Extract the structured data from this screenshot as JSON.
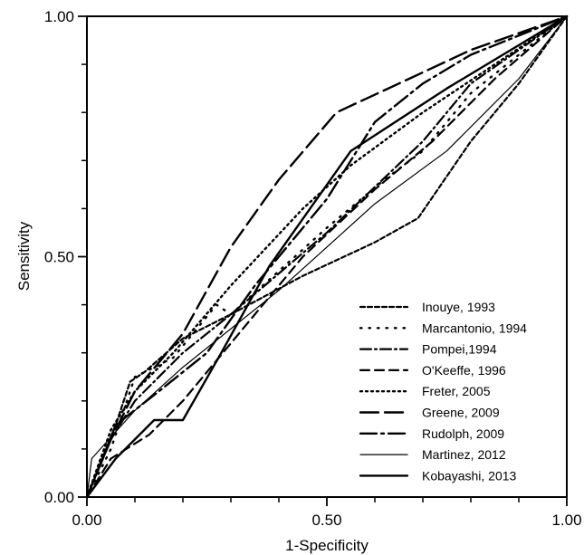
{
  "chart_data": {
    "type": "line",
    "title": "",
    "xlabel": "1-Specificity",
    "ylabel": "Sensitivity",
    "xlim": [
      0,
      1
    ],
    "ylim": [
      0,
      1
    ],
    "x_ticks": [
      "0.00",
      "0.50",
      "1.00"
    ],
    "y_ticks": [
      "0.00",
      "0.50",
      "1.00"
    ],
    "grid": false,
    "legend_position": "bottom-right",
    "series": [
      {
        "name": "Inouye, 1993",
        "style": "short-dash",
        "width": 2.2,
        "points": [
          [
            0,
            0
          ],
          [
            0.02,
            0.05
          ],
          [
            0.06,
            0.15
          ],
          [
            0.09,
            0.24
          ],
          [
            0.12,
            0.26
          ],
          [
            0.2,
            0.33
          ],
          [
            0.3,
            0.38
          ],
          [
            0.45,
            0.46
          ],
          [
            0.6,
            0.53
          ],
          [
            0.69,
            0.58
          ],
          [
            0.8,
            0.74
          ],
          [
            0.9,
            0.86
          ],
          [
            1,
            1
          ]
        ]
      },
      {
        "name": "Marcantonio, 1994",
        "style": "sparse-dot",
        "width": 2.4,
        "points": [
          [
            0,
            0
          ],
          [
            0.05,
            0.1
          ],
          [
            0.1,
            0.25
          ],
          [
            0.18,
            0.29
          ],
          [
            0.27,
            0.4
          ],
          [
            0.3,
            0.38
          ],
          [
            0.5,
            0.56
          ],
          [
            0.62,
            0.66
          ],
          [
            0.7,
            0.72
          ],
          [
            0.8,
            0.84
          ],
          [
            1,
            1
          ]
        ]
      },
      {
        "name": "Pompei,1994",
        "style": "dash-dot",
        "width": 2.2,
        "points": [
          [
            0,
            0
          ],
          [
            0.05,
            0.12
          ],
          [
            0.1,
            0.2
          ],
          [
            0.2,
            0.3
          ],
          [
            0.3,
            0.38
          ],
          [
            0.5,
            0.55
          ],
          [
            0.7,
            0.74
          ],
          [
            0.8,
            0.86
          ],
          [
            1,
            1
          ]
        ]
      },
      {
        "name": "O'Keeffe, 1996",
        "style": "dash",
        "width": 2.2,
        "points": [
          [
            0,
            0
          ],
          [
            0.05,
            0.08
          ],
          [
            0.13,
            0.13
          ],
          [
            0.2,
            0.2
          ],
          [
            0.3,
            0.32
          ],
          [
            0.45,
            0.5
          ],
          [
            0.6,
            0.64
          ],
          [
            0.72,
            0.74
          ],
          [
            0.85,
            0.87
          ],
          [
            1,
            1
          ]
        ]
      },
      {
        "name": "Freter, 2005",
        "style": "dot",
        "width": 2.4,
        "points": [
          [
            0,
            0
          ],
          [
            0.05,
            0.14
          ],
          [
            0.1,
            0.22
          ],
          [
            0.18,
            0.3
          ],
          [
            0.3,
            0.44
          ],
          [
            0.45,
            0.6
          ],
          [
            0.55,
            0.69
          ],
          [
            0.7,
            0.8
          ],
          [
            0.85,
            0.9
          ],
          [
            1,
            1
          ]
        ]
      },
      {
        "name": "Greene, 2009",
        "style": "long-dash",
        "width": 2.4,
        "points": [
          [
            0,
            0
          ],
          [
            0.05,
            0.12
          ],
          [
            0.1,
            0.22
          ],
          [
            0.2,
            0.34
          ],
          [
            0.3,
            0.52
          ],
          [
            0.4,
            0.66
          ],
          [
            0.52,
            0.8
          ],
          [
            0.65,
            0.86
          ],
          [
            0.8,
            0.93
          ],
          [
            1,
            1
          ]
        ]
      },
      {
        "name": "Rudolph, 2009",
        "style": "long-dash-dot",
        "width": 2.4,
        "points": [
          [
            0,
            0
          ],
          [
            0.06,
            0.15
          ],
          [
            0.15,
            0.22
          ],
          [
            0.25,
            0.3
          ],
          [
            0.35,
            0.44
          ],
          [
            0.5,
            0.62
          ],
          [
            0.6,
            0.78
          ],
          [
            0.7,
            0.86
          ],
          [
            0.8,
            0.92
          ],
          [
            1,
            1
          ]
        ]
      },
      {
        "name": "Martinez, 2012",
        "style": "thin-solid",
        "width": 1.2,
        "points": [
          [
            0,
            0
          ],
          [
            0.01,
            0.08
          ],
          [
            0.1,
            0.18
          ],
          [
            0.2,
            0.27
          ],
          [
            0.3,
            0.35
          ],
          [
            0.4,
            0.43
          ],
          [
            0.5,
            0.52
          ],
          [
            0.6,
            0.61
          ],
          [
            0.75,
            0.72
          ],
          [
            0.9,
            0.87
          ],
          [
            1,
            1
          ]
        ]
      },
      {
        "name": "Kobayashi, 2013",
        "style": "solid",
        "width": 2.4,
        "points": [
          [
            0,
            0
          ],
          [
            0.06,
            0.08
          ],
          [
            0.14,
            0.16
          ],
          [
            0.2,
            0.16
          ],
          [
            0.28,
            0.3
          ],
          [
            0.38,
            0.48
          ],
          [
            0.55,
            0.72
          ],
          [
            0.75,
            0.85
          ],
          [
            1,
            1
          ]
        ]
      }
    ]
  }
}
